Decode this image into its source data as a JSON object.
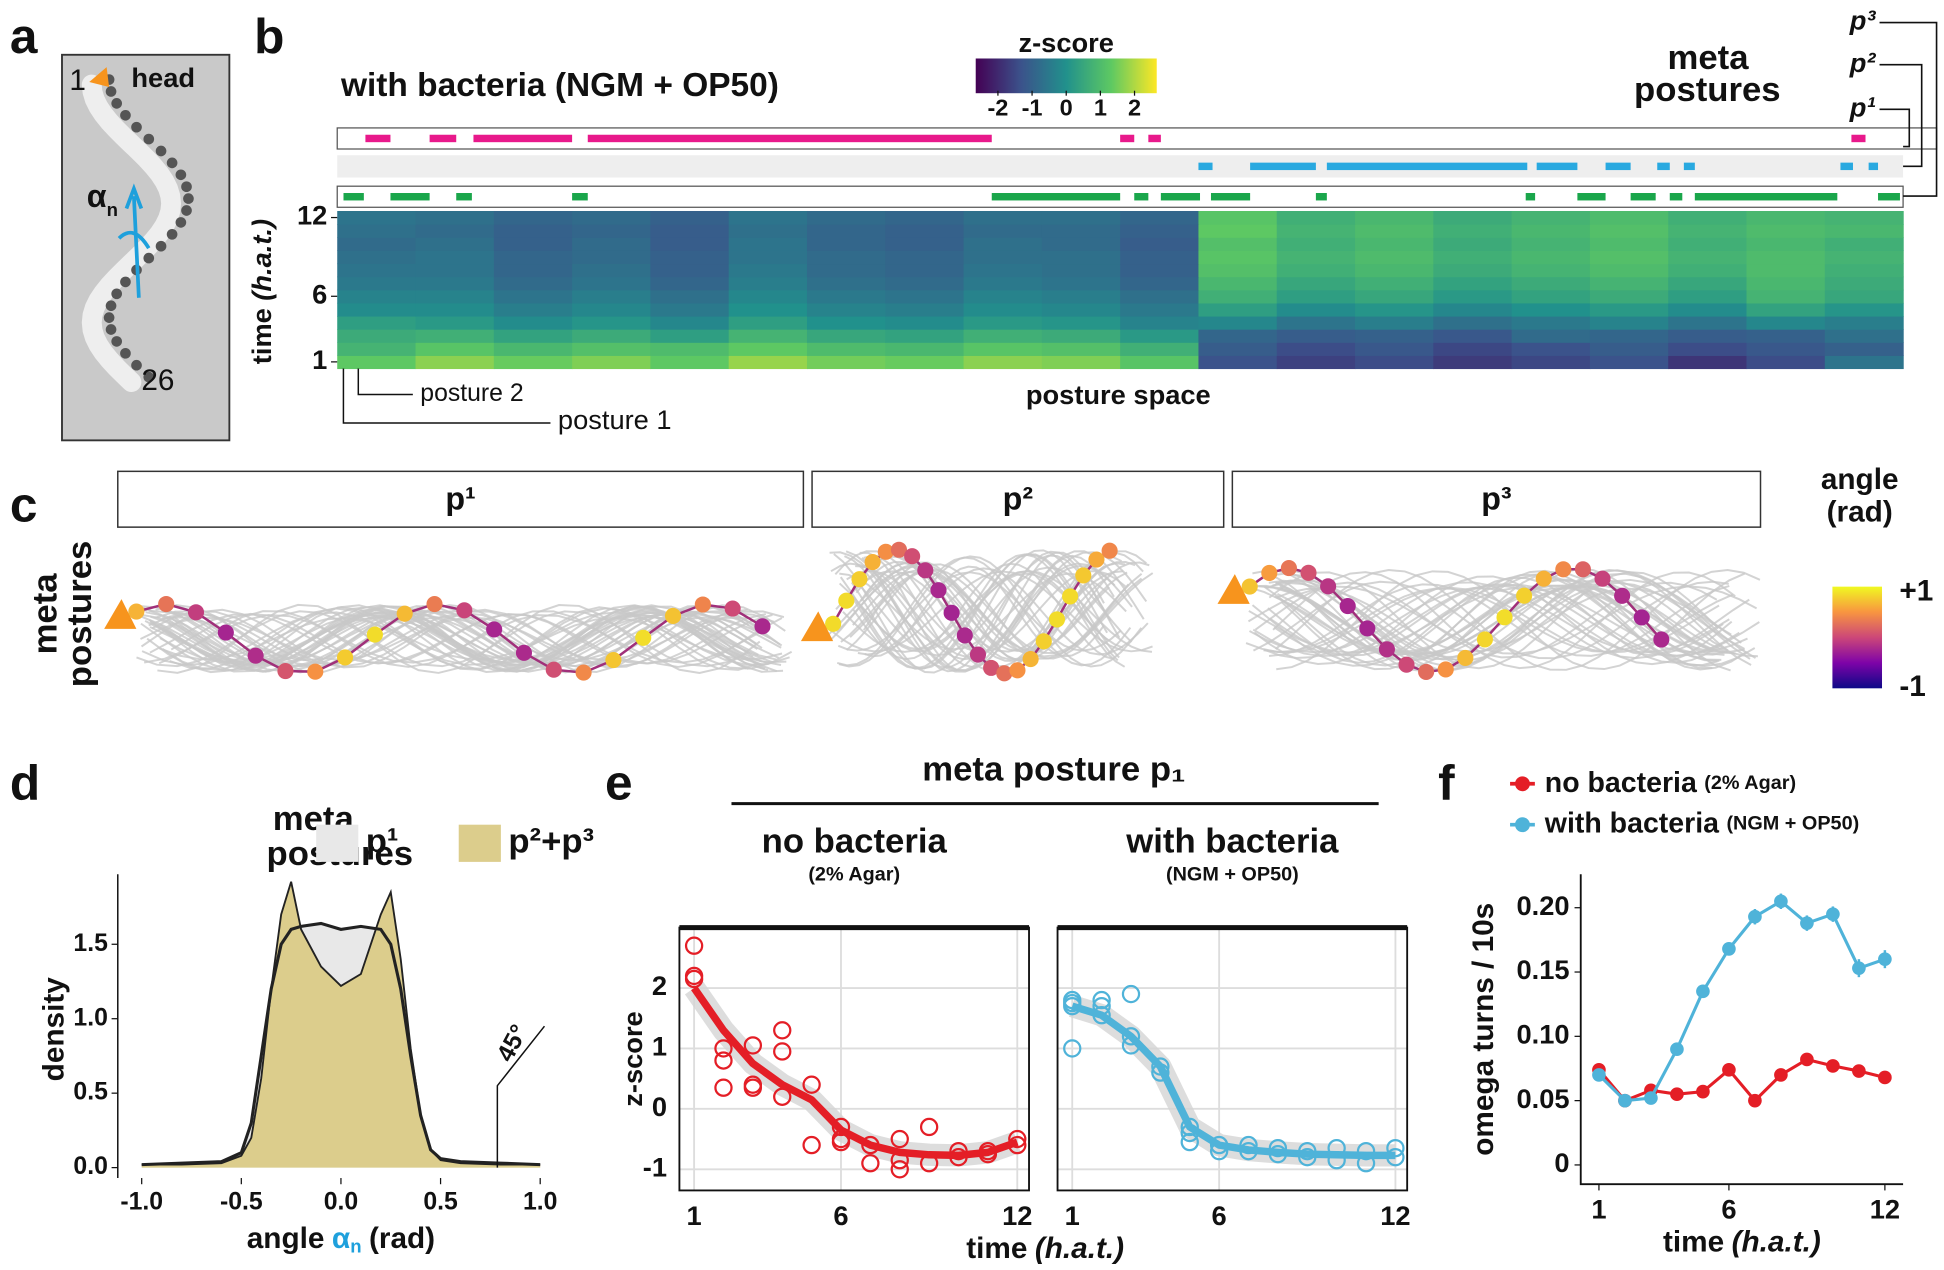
{
  "panel_labels": [
    "a",
    "b",
    "c",
    "d",
    "e",
    "f"
  ],
  "worm": {
    "head_index": "1",
    "head": "head",
    "tail_index": "26",
    "angle_symbol": "α",
    "angle_sub": "n"
  },
  "meta_postures_c": {
    "side_label": [
      "meta",
      "postures"
    ],
    "boxes": [
      "p¹",
      "p²",
      "p³"
    ],
    "colorbar_title": [
      "angle",
      "(rad)"
    ],
    "colorbar_ticks": [
      {
        "value": 1,
        "label": "+1"
      },
      -1
    ]
  },
  "panel_e": {
    "title": "meta  posture p₁"
  },
  "chart_data": [
    {
      "type": "heatmap",
      "title": "with bacteria (NGM + OP50)",
      "colorbar_title": "z-score",
      "clim": [
        -2.65,
        2.65
      ],
      "cticks": [
        -2,
        -1,
        0,
        1,
        2
      ],
      "ylabel": [
        "time",
        "(h.a.t.)"
      ],
      "ylim": [
        0.5,
        12.5
      ],
      "yticks": [
        1,
        6,
        12
      ],
      "xlabel": "posture space",
      "callouts": [
        "posture 2",
        "posture 1"
      ],
      "meta_title": [
        "meta",
        "postures"
      ],
      "meta_rows": [
        {
          "name": "p¹",
          "color": "#e8198b",
          "segments": [
            [
              0.018,
              0.034
            ],
            [
              0.059,
              0.076
            ],
            [
              0.087,
              0.15
            ],
            [
              0.16,
              0.418
            ],
            [
              0.5,
              0.509
            ],
            [
              0.518,
              0.526
            ],
            [
              0.967,
              0.976
            ]
          ]
        },
        {
          "name": "p²",
          "color": "#29a9e0",
          "segments": [
            [
              0.55,
              0.559
            ],
            [
              0.583,
              0.625
            ],
            [
              0.632,
              0.76
            ],
            [
              0.766,
              0.792
            ],
            [
              0.81,
              0.826
            ],
            [
              0.843,
              0.851
            ],
            [
              0.86,
              0.867
            ],
            [
              0.96,
              0.968
            ],
            [
              0.978,
              0.984
            ]
          ]
        },
        {
          "name": "p³",
          "color": "#1aa64b",
          "segments": [
            [
              0.004,
              0.017
            ],
            [
              0.034,
              0.059
            ],
            [
              0.076,
              0.086
            ],
            [
              0.15,
              0.16
            ],
            [
              0.418,
              0.5
            ],
            [
              0.509,
              0.518
            ],
            [
              0.526,
              0.551
            ],
            [
              0.558,
              0.583
            ],
            [
              0.625,
              0.632
            ],
            [
              0.759,
              0.765
            ],
            [
              0.792,
              0.81
            ],
            [
              0.826,
              0.842
            ],
            [
              0.851,
              0.859
            ],
            [
              0.867,
              0.958
            ],
            [
              0.984,
              0.998
            ]
          ]
        }
      ],
      "values": [
        [
          1.3,
          1.7,
          1.4,
          1.6,
          1.3,
          1.8,
          1.5,
          1.4,
          1.7,
          1.6,
          1.2,
          -1.3,
          -1.6,
          -1.4,
          -1.7,
          -1.5,
          -1.3,
          -1.8,
          -1.4,
          -0.6
        ],
        [
          0.8,
          1.2,
          0.9,
          1.1,
          1.0,
          1.3,
          1.0,
          0.9,
          1.2,
          1.1,
          0.7,
          -1.1,
          -1.4,
          -1.2,
          -1.5,
          -1.3,
          -1.1,
          -1.4,
          -1.2,
          -1.0
        ],
        [
          0.6,
          0.7,
          0.4,
          0.6,
          0.3,
          0.8,
          0.5,
          0.4,
          0.7,
          0.6,
          0.2,
          -0.9,
          -1.1,
          -1.0,
          -1.2,
          -0.8,
          -0.9,
          -1.1,
          -1.0,
          -0.7
        ],
        [
          0.3,
          0.2,
          -0.1,
          0.1,
          -0.2,
          0.3,
          0.0,
          -0.1,
          0.2,
          0.1,
          -0.3,
          -0.2,
          -0.6,
          -0.4,
          -0.7,
          -0.5,
          -0.3,
          -0.6,
          -0.2,
          -0.4
        ],
        [
          -0.1,
          -0.1,
          -0.4,
          -0.2,
          -0.5,
          0.0,
          -0.3,
          -0.4,
          -0.1,
          -0.2,
          -0.5,
          0.3,
          -0.1,
          0.1,
          -0.2,
          0.0,
          0.2,
          -0.1,
          0.4,
          0.1
        ],
        [
          -0.3,
          -0.3,
          -0.6,
          -0.4,
          -0.7,
          -0.2,
          -0.5,
          -0.6,
          -0.3,
          -0.4,
          -0.7,
          0.7,
          0.3,
          0.5,
          0.2,
          0.4,
          0.6,
          0.3,
          0.8,
          0.5
        ],
        [
          -0.5,
          -0.5,
          -0.8,
          -0.6,
          -0.9,
          -0.4,
          -0.7,
          -0.8,
          -0.5,
          -0.6,
          -0.9,
          0.9,
          0.5,
          0.7,
          0.4,
          0.6,
          0.8,
          0.5,
          0.9,
          0.6
        ],
        [
          -0.6,
          -0.6,
          -0.9,
          -0.7,
          -1.0,
          -0.5,
          -0.8,
          -0.9,
          -0.6,
          -0.7,
          -1.0,
          1.1,
          0.7,
          0.9,
          0.6,
          0.8,
          1.0,
          0.7,
          1.0,
          0.7
        ],
        [
          -0.7,
          -0.6,
          -0.9,
          -0.8,
          -1.0,
          -0.6,
          -0.8,
          -0.9,
          -0.7,
          -0.7,
          -1.0,
          1.2,
          0.8,
          1.0,
          0.7,
          0.9,
          1.1,
          0.8,
          1.0,
          0.8
        ],
        [
          -0.8,
          -0.7,
          -1.0,
          -0.8,
          -1.1,
          -0.6,
          -0.9,
          -1.0,
          -0.7,
          -0.8,
          -1.1,
          1.1,
          0.7,
          0.9,
          0.6,
          0.8,
          1.0,
          0.7,
          0.9,
          0.7
        ],
        [
          -0.7,
          -0.8,
          -1.0,
          -0.9,
          -1.1,
          -0.7,
          -0.9,
          -1.0,
          -0.8,
          -0.8,
          -1.0,
          1.3,
          0.8,
          1.0,
          0.7,
          0.9,
          1.1,
          0.8,
          1.0,
          0.9
        ],
        [
          -0.6,
          -0.7,
          -0.9,
          -0.8,
          -1.0,
          -0.6,
          -0.8,
          -0.9,
          -0.7,
          -0.7,
          -0.9,
          1.2,
          0.7,
          0.9,
          0.6,
          0.8,
          1.0,
          0.7,
          0.9,
          0.8
        ]
      ]
    },
    {
      "type": "area",
      "legend_title": [
        "meta",
        "postures"
      ],
      "edgecolor": "#222",
      "x": [
        -1,
        -0.8,
        -0.6,
        -0.5,
        -0.45,
        -0.4,
        -0.35,
        -0.3,
        -0.25,
        -0.2,
        -0.1,
        0,
        0.1,
        0.2,
        0.25,
        0.3,
        0.35,
        0.4,
        0.45,
        0.5,
        0.6,
        0.8,
        1
      ],
      "series": [
        {
          "name": "p¹",
          "color": "#e8e8e8",
          "values": [
            0.02,
            0.03,
            0.04,
            0.1,
            0.3,
            0.75,
            1.2,
            1.5,
            1.6,
            1.62,
            1.64,
            1.6,
            1.62,
            1.6,
            1.5,
            1.2,
            0.75,
            0.35,
            0.12,
            0.06,
            0.04,
            0.03,
            0.02
          ]
        },
        {
          "name": "p²+p³",
          "color": "#dccd8c",
          "values": [
            0.02,
            0.02,
            0.03,
            0.08,
            0.2,
            0.6,
            1.2,
            1.7,
            1.92,
            1.6,
            1.35,
            1.22,
            1.3,
            1.7,
            1.85,
            1.4,
            0.8,
            0.35,
            0.12,
            0.05,
            0.03,
            0.02,
            0.02
          ]
        }
      ],
      "xlim": [
        -1.12,
        1.12
      ],
      "xticks": [
        {
          "value": -1,
          "label": "-1.0"
        },
        -0.5,
        {
          "value": 0,
          "label": "0.0"
        },
        0.5,
        {
          "value": 1,
          "label": "1.0"
        }
      ],
      "ylim": [
        -0.07,
        1.97
      ],
      "yticks": [
        {
          "value": 0,
          "label": "0.0"
        },
        0.5,
        {
          "value": 1,
          "label": "1.0"
        },
        1.5
      ],
      "ylabel": "density",
      "xlabel": [
        "angle",
        "α",
        "n",
        "(rad)"
      ],
      "annotation": {
        "text": "45°",
        "x": 0.785
      }
    },
    {
      "type": "scatter",
      "title": "no bacteria",
      "subtitle": "(2% Agar)",
      "color": "#e41e26",
      "scatter_x": [
        1,
        1,
        1,
        2,
        2,
        2,
        3,
        3,
        3,
        4,
        4,
        4,
        5,
        5,
        6,
        6,
        6,
        7,
        7,
        8,
        8,
        8,
        9,
        9,
        10,
        10,
        11,
        11,
        12,
        12
      ],
      "scatter_values": [
        2.7,
        2.2,
        2.15,
        1.0,
        0.8,
        0.35,
        1.05,
        0.4,
        0.35,
        1.3,
        0.95,
        0.2,
        0.4,
        -0.6,
        -0.3,
        -0.5,
        -0.55,
        -0.9,
        -0.6,
        -0.5,
        -1.0,
        -0.85,
        -0.3,
        -0.9,
        -0.8,
        -0.7,
        -0.7,
        -0.75,
        -0.5,
        -0.6
      ],
      "fit_x": [
        1,
        2,
        3,
        4,
        5,
        6,
        7,
        8,
        9,
        10,
        11,
        12
      ],
      "fit_values": [
        2.0,
        1.3,
        0.75,
        0.4,
        0.15,
        -0.35,
        -0.6,
        -0.72,
        -0.76,
        -0.77,
        -0.72,
        -0.55
      ],
      "xlim": [
        0.5,
        12.4
      ],
      "xticks": [
        1,
        6,
        12
      ],
      "ylim": [
        -1.35,
        3.0
      ],
      "yticks": [
        -1,
        0,
        1,
        2
      ],
      "grid": true,
      "ylabel": "z-score",
      "xlabel": [
        "time",
        "(h.a.t.)"
      ]
    },
    {
      "type": "scatter",
      "title": "with bacteria",
      "subtitle": "(NGM + OP50)",
      "color": "#4fb3d9",
      "scatter_x": [
        1,
        1,
        1,
        1,
        2,
        2,
        2,
        3,
        3,
        3,
        4,
        4,
        5,
        5,
        5,
        6,
        6,
        7,
        7,
        8,
        8,
        9,
        9,
        10,
        10,
        11,
        11,
        12,
        12
      ],
      "scatter_values": [
        1.75,
        1.7,
        1.0,
        1.8,
        1.55,
        1.8,
        1.7,
        1.9,
        1.2,
        1.05,
        0.6,
        0.7,
        -0.3,
        -0.55,
        -0.4,
        -0.6,
        -0.7,
        -0.6,
        -0.7,
        -0.65,
        -0.75,
        -0.7,
        -0.8,
        -0.65,
        -0.85,
        -0.7,
        -0.9,
        -0.65,
        -0.8
      ],
      "fit_x": [
        1,
        2,
        3,
        4,
        5,
        6,
        7,
        8,
        9,
        10,
        11,
        12
      ],
      "fit_values": [
        1.7,
        1.55,
        1.2,
        0.7,
        -0.3,
        -0.6,
        -0.68,
        -0.72,
        -0.75,
        -0.76,
        -0.77,
        -0.77
      ],
      "xlim": [
        0.5,
        12.4
      ],
      "xticks": [
        1,
        6,
        12
      ],
      "ylim": [
        -1.35,
        3.0
      ],
      "yticks": [
        -1,
        0,
        1,
        2
      ],
      "grid": true
    },
    {
      "type": "line",
      "x": [
        1,
        2,
        3,
        4,
        5,
        6,
        7,
        8,
        9,
        10,
        11,
        12
      ],
      "series": [
        {
          "name": "no bacteria",
          "name_note": "(2% Agar)",
          "color": "#e41e26",
          "values": [
            0.074,
            0.05,
            0.058,
            0.055,
            0.057,
            0.074,
            0.05,
            0.07,
            0.082,
            0.077,
            0.073,
            0.068
          ],
          "errors": [
            0.005,
            0.004,
            0.004,
            0.004,
            0.004,
            0.005,
            0.004,
            0.005,
            0.005,
            0.005,
            0.004,
            0.004
          ]
        },
        {
          "name": "with bacteria",
          "name_note": "(NGM + OP50)",
          "color": "#4fb3d9",
          "values": [
            0.07,
            0.05,
            0.052,
            0.09,
            0.135,
            0.168,
            0.193,
            0.205,
            0.188,
            0.195,
            0.153,
            0.16
          ],
          "errors": [
            0.004,
            0.004,
            0.004,
            0.004,
            0.005,
            0.005,
            0.006,
            0.006,
            0.006,
            0.006,
            0.007,
            0.007
          ]
        }
      ],
      "xlim": [
        0.3,
        12.7
      ],
      "xticks": [
        1,
        6,
        12
      ],
      "ylim": [
        -0.015,
        0.226
      ],
      "yticks": [
        0,
        0.05,
        {
          "value": 0.1,
          "label": "0.10"
        },
        0.15,
        {
          "value": 0.2,
          "label": "0.20"
        }
      ],
      "ylabel": "omega turns / 10s",
      "xlabel": [
        "time",
        "(h.a.t.)"
      ]
    }
  ]
}
